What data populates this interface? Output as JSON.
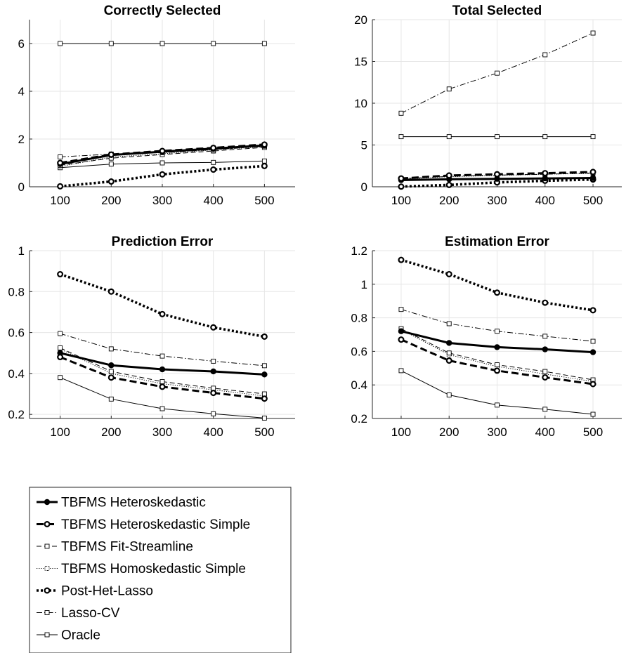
{
  "x_ticks": [
    100,
    200,
    300,
    400,
    500
  ],
  "chart_data": [
    {
      "type": "line",
      "title": "Correctly Selected",
      "xlabel": "",
      "ylabel": "",
      "x": [
        100,
        200,
        300,
        400,
        500
      ],
      "xlim": [
        40,
        560
      ],
      "ylim": [
        0,
        7
      ],
      "yticks": [
        0,
        2,
        4,
        6
      ],
      "grid": true,
      "series": [
        {
          "name": "TBFMS Heteroskedastic",
          "values": [
            0.95,
            1.33,
            1.47,
            1.6,
            1.73
          ]
        },
        {
          "name": "TBFMS Heteroskedastic Simple",
          "values": [
            1.0,
            1.35,
            1.5,
            1.63,
            1.77
          ]
        },
        {
          "name": "TBFMS Fit-Streamline",
          "values": [
            0.9,
            1.2,
            1.35,
            1.5,
            1.65
          ]
        },
        {
          "name": "TBFMS Homoskedastic Simple",
          "values": [
            0.85,
            1.25,
            1.38,
            1.55,
            1.68
          ]
        },
        {
          "name": "Post-Het-Lasso",
          "values": [
            0.02,
            0.22,
            0.52,
            0.72,
            0.87
          ]
        },
        {
          "name": "Lasso-CV",
          "values": [
            1.25,
            1.37,
            1.43,
            1.55,
            1.7
          ]
        },
        {
          "name": "Oracle",
          "values": [
            6,
            6,
            6,
            6,
            6
          ]
        },
        {
          "name": "Oracle (lower)",
          "values": [
            0.8,
            0.95,
            1.0,
            1.02,
            1.08
          ]
        }
      ]
    },
    {
      "type": "line",
      "title": "Total Selected",
      "xlabel": "",
      "ylabel": "",
      "x": [
        100,
        200,
        300,
        400,
        500
      ],
      "xlim": [
        40,
        560
      ],
      "ylim": [
        0,
        20
      ],
      "yticks": [
        0,
        5,
        10,
        15,
        20
      ],
      "grid": true,
      "series": [
        {
          "name": "TBFMS Heteroskedastic",
          "values": [
            0.8,
            0.9,
            0.95,
            1.0,
            1.05
          ]
        },
        {
          "name": "TBFMS Heteroskedastic Simple",
          "values": [
            1.0,
            1.35,
            1.5,
            1.63,
            1.77
          ]
        },
        {
          "name": "TBFMS Fit-Streamline",
          "values": [
            0.95,
            1.25,
            1.4,
            1.5,
            1.65
          ]
        },
        {
          "name": "TBFMS Homoskedastic Simple",
          "values": [
            0.9,
            1.2,
            1.35,
            1.5,
            1.6
          ]
        },
        {
          "name": "Post-Het-Lasso",
          "values": [
            0.02,
            0.22,
            0.52,
            0.72,
            0.87
          ]
        },
        {
          "name": "Lasso-CV",
          "values": [
            8.8,
            11.7,
            13.6,
            15.8,
            18.4
          ]
        },
        {
          "name": "Oracle",
          "values": [
            6,
            6,
            6,
            6,
            6
          ]
        }
      ]
    },
    {
      "type": "line",
      "title": "Prediction Error",
      "xlabel": "",
      "ylabel": "",
      "x": [
        100,
        200,
        300,
        400,
        500
      ],
      "xlim": [
        40,
        560
      ],
      "ylim": [
        0.18,
        1.0
      ],
      "yticks": [
        0.2,
        0.4,
        0.6,
        0.8,
        1
      ],
      "ytick_labels": [
        "0.2",
        "0.4",
        "0.6",
        "0.8",
        "1"
      ],
      "grid": true,
      "series": [
        {
          "name": "TBFMS Heteroskedastic",
          "values": [
            0.5,
            0.44,
            0.42,
            0.41,
            0.395
          ]
        },
        {
          "name": "TBFMS Heteroskedastic Simple",
          "values": [
            0.48,
            0.38,
            0.335,
            0.305,
            0.277
          ]
        },
        {
          "name": "TBFMS Fit-Streamline",
          "values": [
            0.525,
            0.41,
            0.36,
            0.328,
            0.3
          ]
        },
        {
          "name": "TBFMS Homoskedastic Simple",
          "values": [
            0.52,
            0.4,
            0.35,
            0.32,
            0.29
          ]
        },
        {
          "name": "Post-Het-Lasso",
          "values": [
            0.885,
            0.8,
            0.69,
            0.625,
            0.58
          ]
        },
        {
          "name": "Lasso-CV",
          "values": [
            0.595,
            0.52,
            0.485,
            0.46,
            0.438
          ]
        },
        {
          "name": "Oracle",
          "values": [
            0.38,
            0.275,
            0.228,
            0.203,
            0.182
          ]
        }
      ]
    },
    {
      "type": "line",
      "title": "Estimation Error",
      "xlabel": "",
      "ylabel": "",
      "x": [
        100,
        200,
        300,
        400,
        500
      ],
      "xlim": [
        40,
        560
      ],
      "ylim": [
        0.2,
        1.2
      ],
      "yticks": [
        0.2,
        0.4,
        0.6,
        0.8,
        1,
        1.2
      ],
      "ytick_labels": [
        "0.2",
        "0.4",
        "0.6",
        "0.8",
        "1",
        "1.2"
      ],
      "grid": true,
      "series": [
        {
          "name": "TBFMS Heteroskedastic",
          "values": [
            0.72,
            0.65,
            0.625,
            0.612,
            0.595
          ]
        },
        {
          "name": "TBFMS Heteroskedastic Simple",
          "values": [
            0.67,
            0.545,
            0.485,
            0.445,
            0.405
          ]
        },
        {
          "name": "TBFMS Fit-Streamline",
          "values": [
            0.735,
            0.59,
            0.52,
            0.48,
            0.43
          ]
        },
        {
          "name": "TBFMS Homoskedastic Simple",
          "values": [
            0.73,
            0.58,
            0.51,
            0.465,
            0.42
          ]
        },
        {
          "name": "Post-Het-Lasso",
          "values": [
            1.145,
            1.06,
            0.95,
            0.89,
            0.845
          ]
        },
        {
          "name": "Lasso-CV",
          "values": [
            0.85,
            0.765,
            0.72,
            0.69,
            0.66
          ]
        },
        {
          "name": "Oracle",
          "values": [
            0.485,
            0.34,
            0.28,
            0.255,
            0.225
          ]
        }
      ]
    }
  ],
  "styles": {
    "TBFMS Heteroskedastic": {
      "dash": "",
      "width": 3,
      "marker": "circle-filled"
    },
    "TBFMS Heteroskedastic Simple": {
      "dash": "10,5",
      "width": 3,
      "marker": "circle-open"
    },
    "TBFMS Fit-Streamline": {
      "dash": "7,4",
      "width": 1,
      "marker": "square"
    },
    "TBFMS Homoskedastic Simple": {
      "dash": "1.2,2",
      "width": 1,
      "marker": "square-dotted"
    },
    "Post-Het-Lasso": {
      "dash": "3,3",
      "width": 3.6,
      "marker": "circle-open"
    },
    "Lasso-CV": {
      "dash": "8,3,1.5,3",
      "width": 1,
      "marker": "square"
    },
    "Oracle": {
      "dash": "",
      "width": 1,
      "marker": "square"
    },
    "Oracle (lower)": {
      "dash": "",
      "width": 1,
      "marker": "square"
    }
  },
  "legend": {
    "entries": [
      {
        "label": "TBFMS Heteroskedastic",
        "style": "TBFMS Heteroskedastic"
      },
      {
        "label": "TBFMS Heteroskedastic Simple",
        "style": "TBFMS Heteroskedastic Simple"
      },
      {
        "label": "TBFMS Fit-Streamline",
        "style": "TBFMS Fit-Streamline"
      },
      {
        "label": "TBFMS Homoskedastic Simple",
        "style": "TBFMS Homoskedastic Simple"
      },
      {
        "label": "Post-Het-Lasso",
        "style": "Post-Het-Lasso"
      },
      {
        "label": "Lasso-CV",
        "style": "Lasso-CV"
      },
      {
        "label": "Oracle",
        "style": "Oracle"
      }
    ],
    "placement": "bottom-left"
  },
  "colors": {
    "line": "#000000",
    "grid": "#e6e6e6",
    "axis": "#262626",
    "legend_border": "#262626",
    "marker_fill": "#ffffff"
  }
}
